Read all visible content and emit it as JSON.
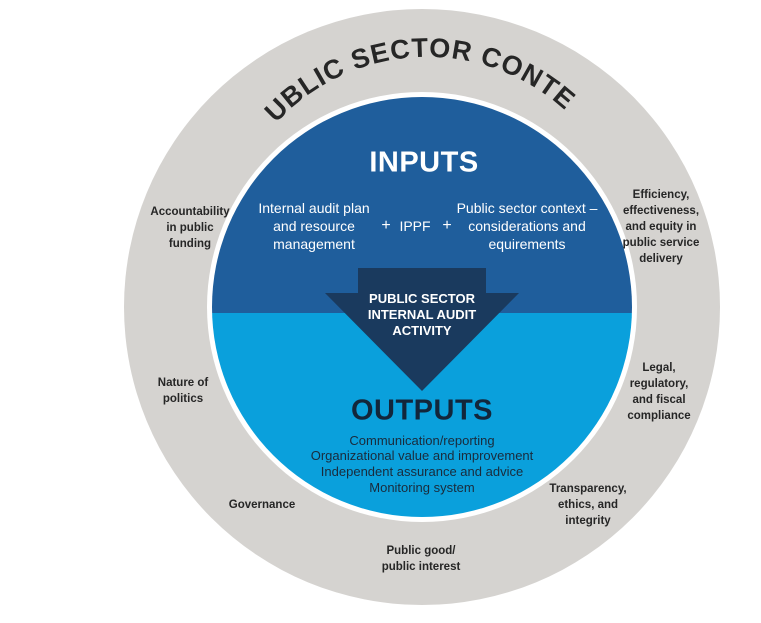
{
  "outer_ring": {
    "title": "PUBLIC SECTOR CONTEXT",
    "factors": [
      "Accountability\nin public\nfunding",
      "Nature of\npolitics",
      "Governance",
      "Public good/\npublic interest",
      "Transparency,\nethics, and\nintegrity",
      "Legal,\nregulatory,\nand fiscal\ncompliance",
      "Efficiency,\neffectiveness,\nand equity in\npublic service\ndelivery"
    ]
  },
  "inputs": {
    "title": "INPUTS",
    "item_1": "Internal audit plan\nand resource\nmanagement",
    "plus_1": "+",
    "item_2": "IPPF",
    "plus_2": "+",
    "item_3": "Public sector context –\nconsiderations and\nequirements"
  },
  "activity": {
    "label": "PUBLIC SECTOR\nINTERNAL AUDIT\nACTIVITY"
  },
  "outputs": {
    "title": "OUTPUTS",
    "items": [
      "Communication/reporting",
      "Organizational value and improvement",
      "Independent assurance and advice",
      "Monitoring system"
    ]
  },
  "colors": {
    "outer_ring": "#d5d3d0",
    "inputs_half": "#1f5e9c",
    "outputs_half": "#0aa0dc",
    "arrow": "#1a3a5e",
    "ring_gap": "#ffffff"
  }
}
